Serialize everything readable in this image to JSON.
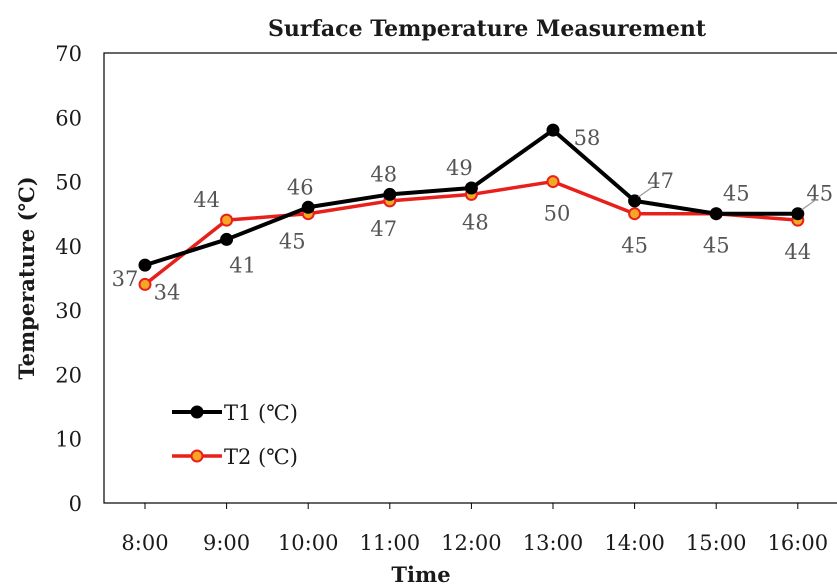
{
  "chart_data": {
    "type": "line",
    "title": "Surface Temperature Measurement",
    "xlabel": "Time",
    "ylabel": "Temperature (℃)",
    "categories": [
      "8:00",
      "9:00",
      "10:00",
      "11:00",
      "12:00",
      "13:00",
      "14:00",
      "15:00",
      "16:00"
    ],
    "ylim": [
      0,
      70
    ],
    "yticks": [
      "0",
      "10",
      "20",
      "30",
      "40",
      "50",
      "60",
      "70"
    ],
    "grid": false,
    "legend_position": "lower-left",
    "series": [
      {
        "name": "T1 (℃)",
        "color": "#000000",
        "values": [
          37,
          41,
          46,
          48,
          49,
          58,
          47,
          45,
          45
        ],
        "labels": [
          "37",
          "41",
          "46",
          "48",
          "49",
          "58",
          "47",
          "45",
          "45"
        ]
      },
      {
        "name": "T2 (℃)",
        "color": "#e8201c",
        "marker_color": "#f5a623",
        "values": [
          34,
          44,
          45,
          47,
          48,
          50,
          45,
          45,
          44
        ],
        "labels": [
          "34",
          "44",
          "45",
          "47",
          "48",
          "50",
          "45",
          "45",
          "44"
        ]
      }
    ]
  }
}
